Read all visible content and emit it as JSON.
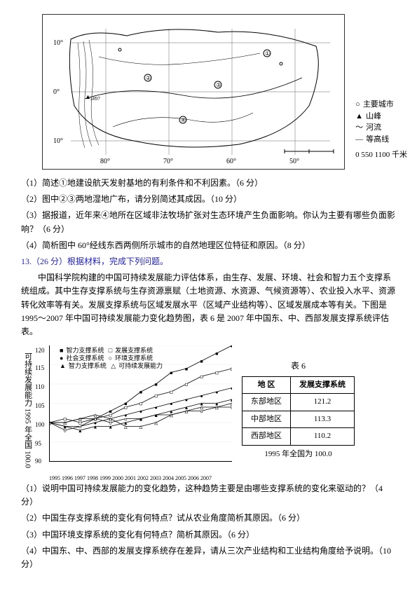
{
  "map": {
    "lat_labels": [
      "10°",
      "0°",
      "10°"
    ],
    "lon_labels": [
      "80°",
      "70°",
      "60°",
      "50°"
    ],
    "scale": "0  550  1100 千米",
    "legend": [
      {
        "sym": "○",
        "label": "主要城市"
      },
      {
        "sym": "▲",
        "label": "山峰"
      },
      {
        "sym": "～",
        "label": "河流"
      },
      {
        "sym": "—",
        "label": "等高线"
      }
    ]
  },
  "questions_a": [
    "（1）简述①地建设航天发射基地的有利条件和不利因素。（6 分）",
    "（2）图中②③两地湿地广布，请分别简述其成因。（10 分）",
    "（3）据报道，近年来④地所在区域非法牧场扩张对生态环境产生负面影响。你认为主要有哪些负面影响？（6 分）",
    "（4）简析图中 60°经线东西两侧所示城市的自然地理区位特征和原因。（8 分）"
  ],
  "q13_header": "13.（26 分）根据材料，完成下列问题。",
  "passage": [
    "中国科学院构建的中国可持续发展能力评估体系，由生存、发展、环境、社会和智力五个支撑系统组成。其中生存支撑系统与生存资源禀赋（土地资源、水资源、气候资源等）、农业投入水平、资源转化效率等有关。发展支撑系统与区域发展水平（区域产业结构等）、区域发展成本等有关。下图是 1995～2007 年中国可持续发展能力变化趋势图，表 6 是 2007 年中国东、中、西部发展支撑系统评估表。"
  ],
  "chart": {
    "type": "line",
    "ylim": [
      90,
      120
    ],
    "ytick_step": 5,
    "yticks": [
      90,
      95,
      100,
      105,
      110,
      115,
      120
    ],
    "xlabels": "1995 1996 1997 1998 1999 2000 2001 2002 2003 2004 2005 2006 2007",
    "ylabel": "可持续发展能力 1995 年全国 100.0",
    "legend": [
      {
        "marker": "■",
        "fill": true,
        "label": "智力支撑系统"
      },
      {
        "marker": "■",
        "fill": false,
        "label": "发展支撑系统"
      },
      {
        "marker": "●",
        "fill": true,
        "label": "社会支撑系统"
      },
      {
        "marker": "●",
        "fill": false,
        "label": "环境支撑系统"
      },
      {
        "marker": "▲",
        "fill": true,
        "label": "智力支撑系统"
      },
      {
        "marker": "▲",
        "fill": false,
        "label": "可持续发展能力"
      }
    ],
    "series": {
      "s1": [
        100,
        100,
        101,
        101,
        103,
        105,
        108,
        110,
        113,
        114,
        116,
        118,
        120
      ],
      "s2": [
        100,
        101,
        100,
        101,
        102,
        104,
        105,
        107,
        108,
        110,
        112,
        113,
        114
      ],
      "s3": [
        100,
        99,
        99,
        100,
        101,
        102,
        103,
        104,
        105,
        106,
        107,
        108,
        109
      ],
      "s4": [
        100,
        98,
        99,
        101,
        100,
        101,
        101,
        102,
        102,
        103,
        103,
        104,
        104
      ],
      "s5": [
        100,
        99,
        98,
        99,
        99,
        100,
        101,
        102,
        103,
        104,
        105,
        105,
        106
      ],
      "s6": [
        100,
        100,
        101,
        102,
        101,
        99,
        99,
        100,
        102,
        103,
        104,
        104,
        105
      ]
    },
    "line_color": "#000",
    "grid_color": "#e0e0e0",
    "background": "#ffffff"
  },
  "table6": {
    "title": "表 6",
    "columns": [
      "地 区",
      "发展支撑系统"
    ],
    "rows": [
      [
        "东部地区",
        "121.2"
      ],
      [
        "中部地区",
        "113.3"
      ],
      [
        "西部地区",
        "110.2"
      ]
    ],
    "footer": "1995 年全国为 100.0"
  },
  "questions_b": [
    "（1）说明中国可持续发展能力的变化趋势，这种趋势主要是由哪些支撑系统的变化来驱动的？（4 分）",
    "（2）中国生存支撑系统的变化有何特点？试从农业角度简析其原因。（6 分）",
    "（3）中国环境支撑系统的变化有何特点？简析其原因。（6 分）",
    "（4）中国东、中、西部的发展支撑系统存在差异，请从三次产业结构和工业结构角度给予说明。（10 分）"
  ]
}
